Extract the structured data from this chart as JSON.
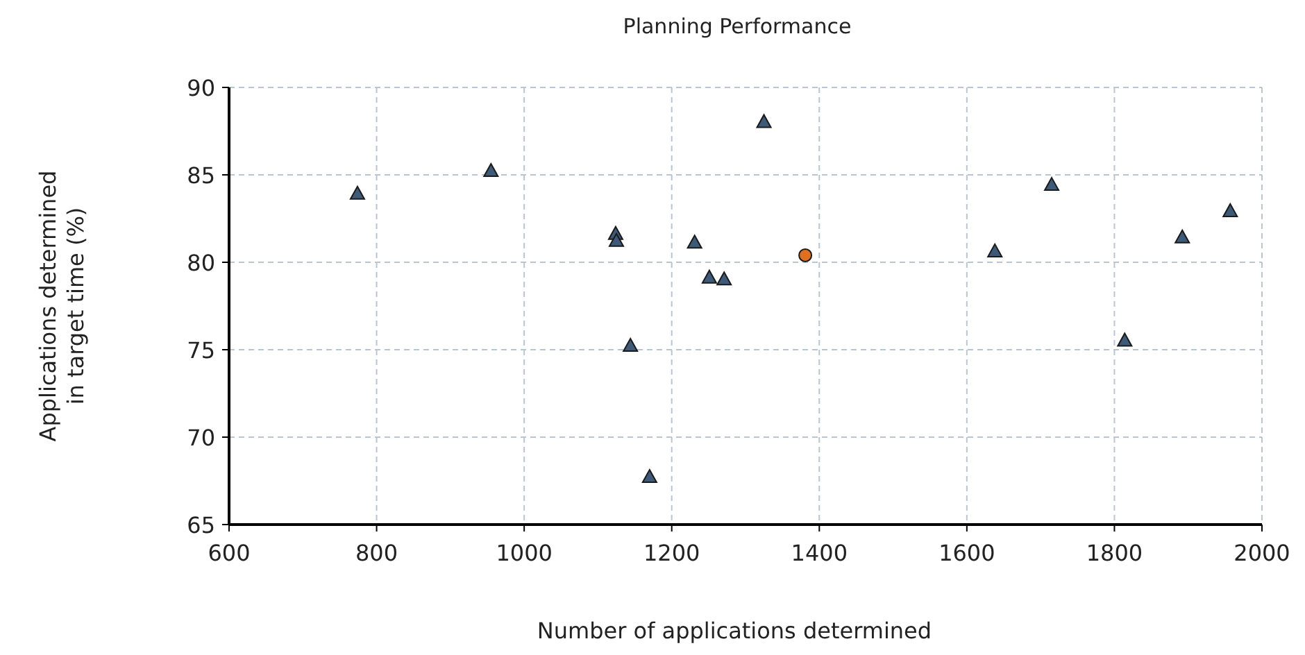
{
  "chart_data": {
    "type": "scatter",
    "title": "Planning Performance",
    "xlabel": "Number of applications determined",
    "ylabel": "Applications determined in target time (%)",
    "xlim": [
      600,
      2000
    ],
    "xticks": [
      600,
      800,
      1000,
      1200,
      1400,
      1600,
      1800,
      2000
    ],
    "ylim": [
      65,
      90
    ],
    "yticks": [
      65,
      70,
      75,
      80,
      85,
      90
    ],
    "grid": true,
    "series": [
      {
        "color": "#3d5a78",
        "marker": "triangle",
        "x": [
          774,
          955,
          1124,
          1125,
          1231,
          1251,
          1271,
          1144,
          1170,
          1325,
          1638,
          1715,
          1814,
          1892,
          1957
        ],
        "values": [
          83.9,
          85.2,
          81.6,
          81.2,
          81.1,
          79.1,
          79.0,
          75.2,
          67.7,
          88.0,
          80.6,
          84.4,
          75.5,
          81.4,
          82.9
        ]
      },
      {
        "color": "#e07020",
        "marker": "circle",
        "x": [
          1381
        ],
        "values": [
          80.4
        ]
      }
    ]
  }
}
